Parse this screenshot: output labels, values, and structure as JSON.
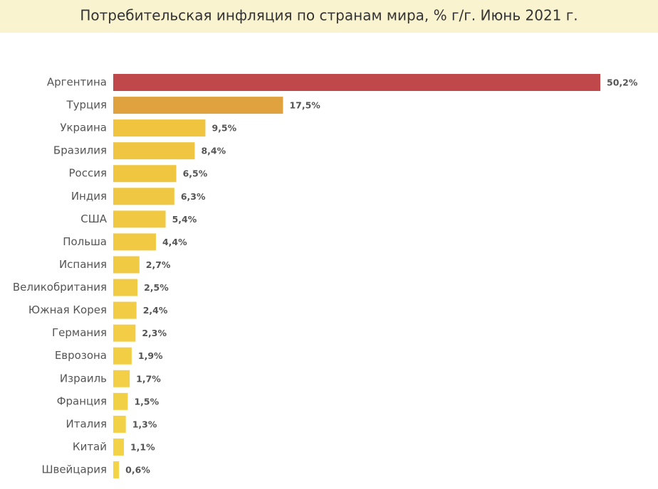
{
  "chart_data": {
    "type": "bar",
    "orientation": "horizontal",
    "title": "Потребительская инфляция по странам мира, % г/г. Июнь 2021 г.",
    "categories": [
      "Аргентина",
      "Турция",
      "Украина",
      "Бразилия",
      "Россия",
      "Индия",
      "США",
      "Польша",
      "Испания",
      "Великобритания",
      "Южная Корея",
      "Германия",
      "Еврозона",
      "Израиль",
      "Франция",
      "Италия",
      "Китай",
      "Швейцария"
    ],
    "values": [
      50.2,
      17.5,
      9.5,
      8.4,
      6.5,
      6.3,
      5.4,
      4.4,
      2.7,
      2.5,
      2.4,
      2.3,
      1.9,
      1.7,
      1.5,
      1.3,
      1.1,
      0.6
    ],
    "value_labels": [
      "50,2%",
      "17,5%",
      "9,5%",
      "8,4%",
      "6,5%",
      "6,3%",
      "5,4%",
      "4,4%",
      "2,7%",
      "2,5%",
      "2,4%",
      "2,3%",
      "1,9%",
      "1,7%",
      "1,5%",
      "1,3%",
      "1,1%",
      "0,6%"
    ],
    "colors": [
      "#c0484a",
      "#e0a23f",
      "#f0c43f",
      "#f0c541",
      "#f0c641",
      "#f0c742",
      "#f1c842",
      "#f1c943",
      "#f1ca43",
      "#f1cb44",
      "#f1cc44",
      "#f2cd45",
      "#f2ce45",
      "#f2cf46",
      "#f2d046",
      "#f2d147",
      "#f3d247",
      "#f3d348"
    ]
  }
}
